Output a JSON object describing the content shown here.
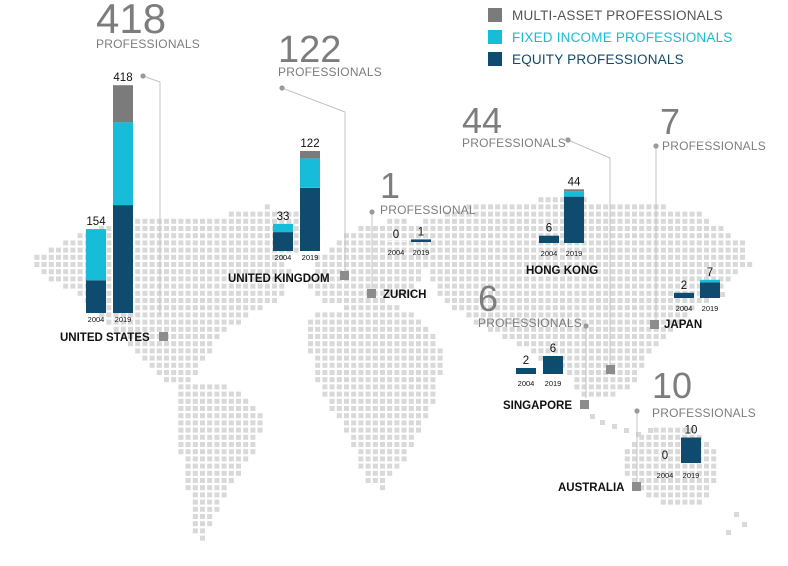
{
  "colors": {
    "multi": "#7b7b7b",
    "fixed": "#17bcd9",
    "equity": "#0f4b6e",
    "dot": "#d9d9d9",
    "marker": "#8c8c8c",
    "leader": "#c4c4c4"
  },
  "chart_data": {
    "type": "bar",
    "stacked": true,
    "legend": [
      {
        "key": "multi",
        "label": "MULTI-ASSET PROFESSIONALS"
      },
      {
        "key": "fixed",
        "label": "FIXED INCOME PROFESSIONALS"
      },
      {
        "key": "equity",
        "label": "EQUITY PROFESSIONALS"
      }
    ],
    "locations": [
      {
        "name": "UNITED STATES",
        "total": "418",
        "unit": "PROFESSIONALS",
        "years": [
          {
            "year": "2004",
            "label": "154",
            "equity": 60,
            "fixed": 94,
            "multi": 0
          },
          {
            "year": "2019",
            "label": "418",
            "equity": 198,
            "fixed": 152,
            "multi": 68
          }
        ]
      },
      {
        "name": "UNITED KINGDOM",
        "total": "122",
        "unit": "PROFESSIONALS",
        "years": [
          {
            "year": "2004",
            "label": "33",
            "equity": 23,
            "fixed": 10,
            "multi": 0
          },
          {
            "year": "2019",
            "label": "122",
            "equity": 77,
            "fixed": 36,
            "multi": 9
          }
        ]
      },
      {
        "name": "ZURICH",
        "total": "1",
        "unit": "PROFESSIONAL",
        "years": [
          {
            "year": "2004",
            "label": "0",
            "equity": 0,
            "fixed": 0,
            "multi": 0
          },
          {
            "year": "2019",
            "label": "1",
            "equity": 1,
            "fixed": 0,
            "multi": 0
          }
        ]
      },
      {
        "name": "HONG KONG",
        "total": "44",
        "unit": "PROFESSIONALS",
        "years": [
          {
            "year": "2004",
            "label": "6",
            "equity": 6,
            "fixed": 0,
            "multi": 0
          },
          {
            "year": "2019",
            "label": "44",
            "equity": 38,
            "fixed": 4,
            "multi": 2
          }
        ]
      },
      {
        "name": "JAPAN",
        "total": "7",
        "unit": "PROFESSIONALS",
        "years": [
          {
            "year": "2004",
            "label": "2",
            "equity": 2,
            "fixed": 0,
            "multi": 0
          },
          {
            "year": "2019",
            "label": "7",
            "equity": 6,
            "fixed": 1,
            "multi": 0
          }
        ]
      },
      {
        "name": "SINGAPORE",
        "total": "6",
        "unit": "PROFESSIONALS",
        "years": [
          {
            "year": "2004",
            "label": "2",
            "equity": 2,
            "fixed": 0,
            "multi": 0
          },
          {
            "year": "2019",
            "label": "6",
            "equity": 6,
            "fixed": 0,
            "multi": 0
          }
        ]
      },
      {
        "name": "AUSTRALIA",
        "total": "10",
        "unit": "PROFESSIONALS",
        "years": [
          {
            "year": "2004",
            "label": "0",
            "equity": 0,
            "fixed": 0,
            "multi": 0
          },
          {
            "year": "2019",
            "label": "10",
            "equity": 10,
            "fixed": 0,
            "multi": 0
          }
        ]
      }
    ]
  }
}
